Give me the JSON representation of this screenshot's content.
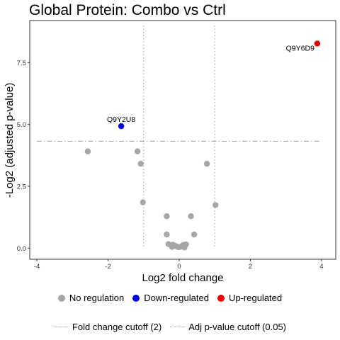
{
  "chart_data": {
    "type": "scatter",
    "title": "Global Protein: Combo vs Ctrl",
    "xlabel": "Log2 fold change",
    "ylabel": "-Log2 (adjusted p-value)",
    "xlim": [
      -4.2,
      4.4
    ],
    "ylim": [
      -0.45,
      9.2
    ],
    "x_ticks": [
      "-4",
      "-2",
      "0",
      "2",
      "4"
    ],
    "x_tick_values": [
      -4,
      -2,
      0,
      2,
      4
    ],
    "y_ticks": [
      "0.0",
      "2.5",
      "5.0",
      "7.5"
    ],
    "y_tick_values": [
      0,
      2.5,
      5.0,
      7.5
    ],
    "grid": false,
    "legend_placement": "bottom",
    "fold_change_cutoff": 1,
    "p_value_cutoff_y": 4.32,
    "series": [
      {
        "name": "No regulation",
        "color": "#a6a6a6",
        "points": [
          [
            -2.57,
            3.91
          ],
          [
            -1.17,
            3.91
          ],
          [
            -1.08,
            3.41
          ],
          [
            0.78,
            3.41
          ],
          [
            -1.02,
            1.85
          ],
          [
            1.02,
            1.74
          ],
          [
            -0.35,
            1.29
          ],
          [
            0.33,
            1.29
          ],
          [
            -0.35,
            0.55
          ],
          [
            0.42,
            0.55
          ],
          [
            -0.3,
            0.16
          ],
          [
            -0.18,
            0.14
          ],
          [
            -0.12,
            0.1
          ],
          [
            -0.06,
            0.06
          ],
          [
            -0.02,
            0.04
          ],
          [
            0.03,
            0.05
          ],
          [
            0.07,
            0.08
          ],
          [
            0.12,
            0.13
          ],
          [
            0.19,
            0.15
          ],
          [
            -0.2,
            0.05
          ],
          [
            0.15,
            0.03
          ]
        ]
      },
      {
        "name": "Down-regulated",
        "color": "#0000ee",
        "points": [
          [
            -1.63,
            4.93
          ]
        ]
      },
      {
        "name": "Up-regulated",
        "color": "#ee0000",
        "points": [
          [
            3.88,
            8.27
          ]
        ]
      }
    ],
    "annotations": [
      {
        "label": "Q9Y2U8",
        "x": -1.63,
        "y": 4.93
      },
      {
        "label": "Q9Y6D9",
        "x": 3.88,
        "y": 8.27
      }
    ],
    "cutoff_legend": {
      "fold_change": "Fold change cutoff (2)",
      "p_value": "Adj p-value cutoff (0.05)"
    }
  }
}
